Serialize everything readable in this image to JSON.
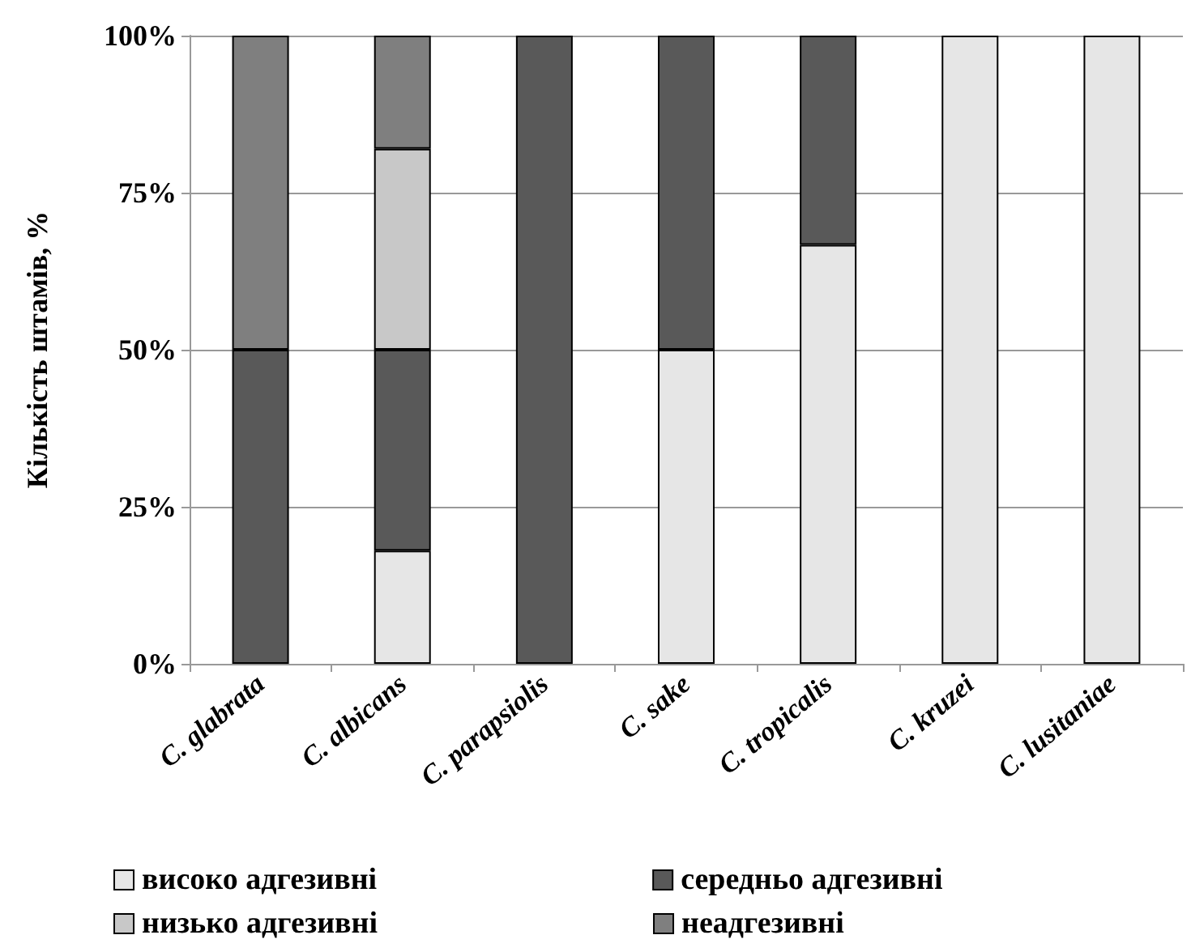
{
  "chart_data": {
    "type": "bar",
    "stacked": true,
    "ylabel": "Кількість штамів, %",
    "categories": [
      "C. glabrata",
      "C. albicans",
      "C. parapsiolis",
      "C. sake",
      "C. tropicalis",
      "C. kruzei",
      "C. lusitaniae"
    ],
    "series": [
      {
        "name": "високо адгезивні",
        "color": "#e6e6e6",
        "values": [
          0,
          18,
          0,
          50,
          66.7,
          100,
          100
        ]
      },
      {
        "name": "середньо адгезивні",
        "color": "#595959",
        "values": [
          50,
          32,
          100,
          50,
          33.3,
          0,
          0
        ]
      },
      {
        "name": "низько адгезивні",
        "color": "#c8c8c8",
        "values": [
          0,
          32,
          0,
          0,
          0,
          0,
          0
        ]
      },
      {
        "name": "неадгезивні",
        "color": "#7f7f7f",
        "values": [
          50,
          18,
          0,
          0,
          0,
          0,
          0
        ]
      }
    ],
    "ylim": [
      0,
      100
    ],
    "yticks": [
      {
        "value": 0,
        "label": "0%"
      },
      {
        "value": 25,
        "label": "25%"
      },
      {
        "value": 50,
        "label": "50%"
      },
      {
        "value": 75,
        "label": "75%"
      },
      {
        "value": 100,
        "label": "100%"
      }
    ],
    "grid": "y",
    "legend": "bottom"
  }
}
